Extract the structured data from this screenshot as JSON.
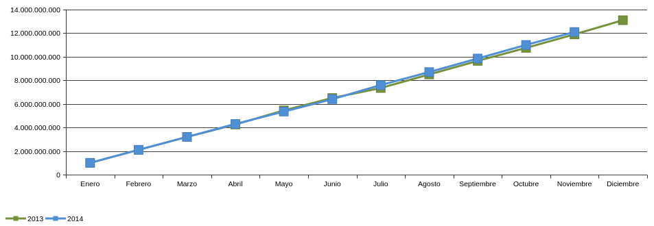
{
  "chart_data": {
    "type": "line",
    "title": "",
    "xlabel": "",
    "ylabel": "",
    "categories": [
      "Enero",
      "Febrero",
      "Marzo",
      "Abril",
      "Mayo",
      "Junio",
      "Julio",
      "Agosto",
      "Septiembre",
      "Octubre",
      "Noviembre",
      "Diciembre"
    ],
    "ylim": [
      0,
      14000000000
    ],
    "yticks": [
      "0",
      "2.000.000.000",
      "4.000.000.000",
      "6.000.000.000",
      "8.000.000.000",
      "10.000.000.000",
      "12.000.000.000",
      "14.000.000.000"
    ],
    "ytick_values": [
      0,
      2000000000,
      4000000000,
      6000000000,
      8000000000,
      10000000000,
      12000000000,
      14000000000
    ],
    "grid": "horizontal",
    "legend_position": "bottom-left",
    "series": [
      {
        "name": "2013",
        "color": "#76933C",
        "marker": "square",
        "values": [
          1000000000,
          2100000000,
          3200000000,
          4250000000,
          5450000000,
          6500000000,
          7350000000,
          8500000000,
          9650000000,
          10750000000,
          11900000000,
          13100000000
        ]
      },
      {
        "name": "2014",
        "color": "#4F8FD5",
        "marker": "square",
        "values": [
          1000000000,
          2100000000,
          3200000000,
          4300000000,
          5350000000,
          6400000000,
          7600000000,
          8700000000,
          9850000000,
          11000000000,
          12100000000,
          null
        ]
      }
    ]
  }
}
